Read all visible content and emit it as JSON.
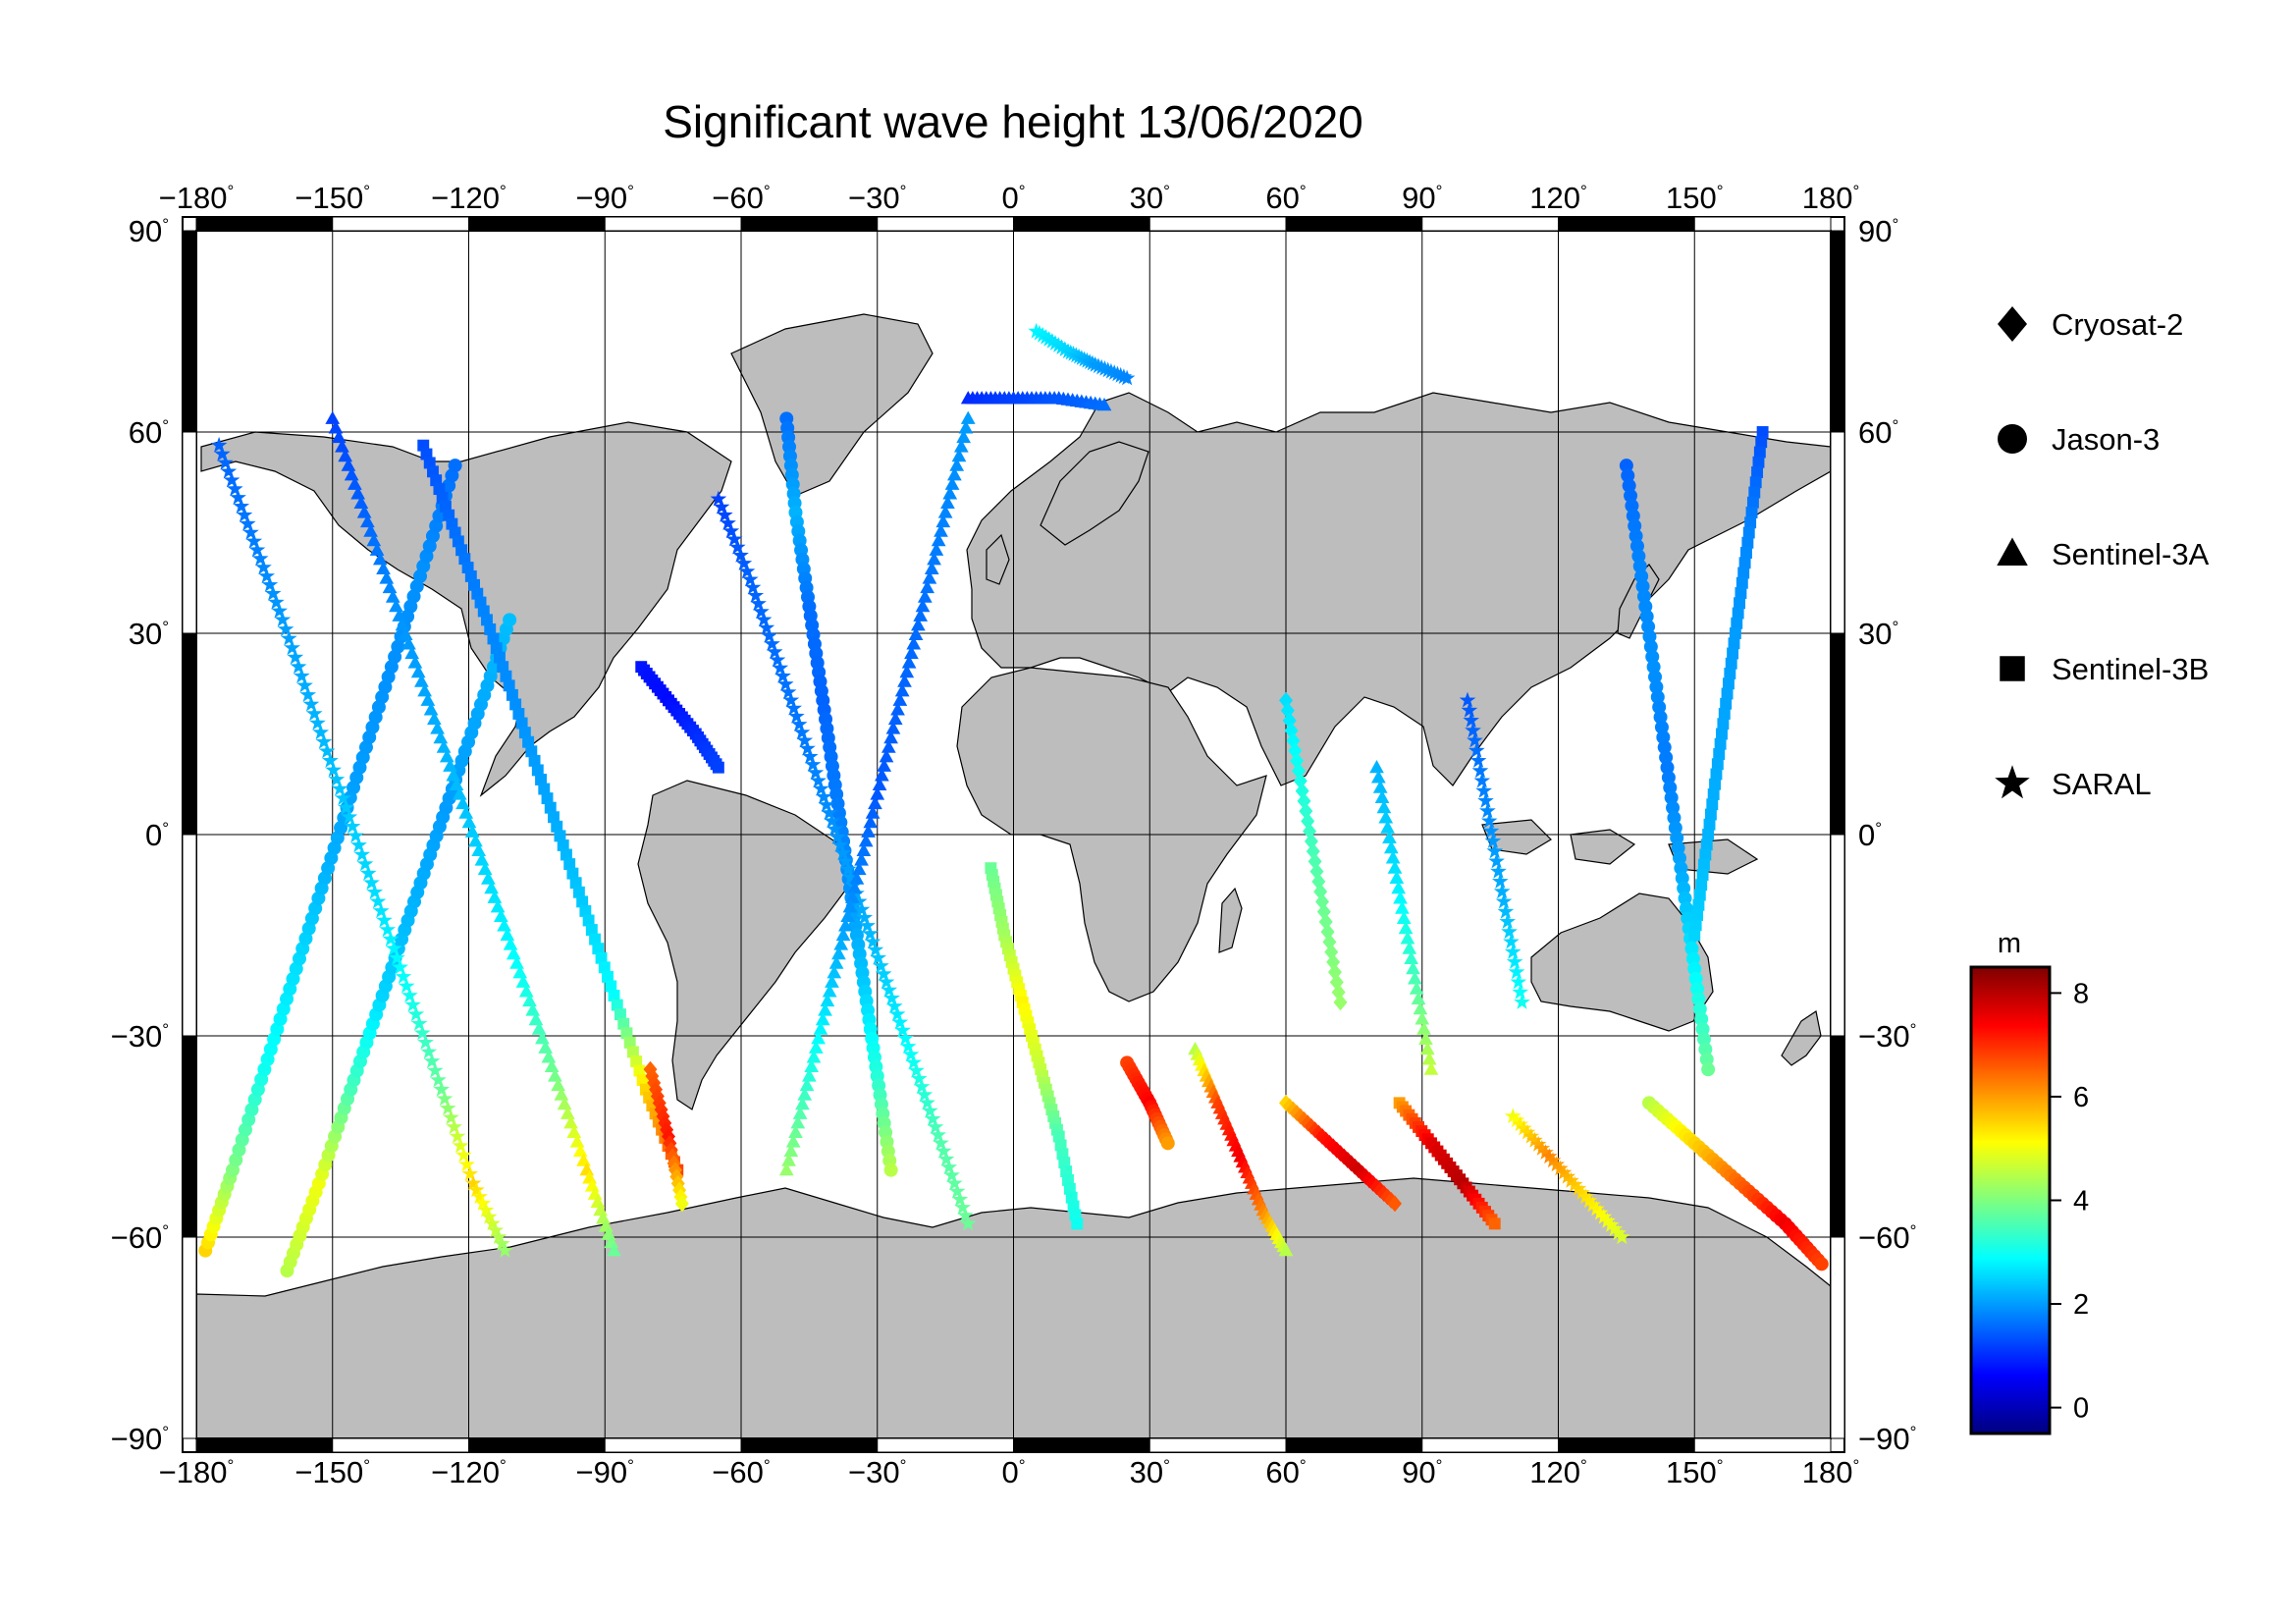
{
  "chart_data": {
    "type": "scatter",
    "title": "Significant wave height 13/06/2020",
    "projection": "equirectangular",
    "xlim": [
      -180,
      180
    ],
    "ylim": [
      -90,
      90
    ],
    "x_ticks": [
      "-180",
      "-150",
      "-120",
      "-90",
      "-60",
      "-30",
      "0",
      "30",
      "60",
      "90",
      "120",
      "150",
      "180"
    ],
    "y_ticks": [
      "90",
      "60",
      "30",
      "0",
      "-30",
      "-60",
      "-90"
    ],
    "x_tick_values": [
      -180,
      -150,
      -120,
      -90,
      -60,
      -30,
      0,
      30,
      60,
      90,
      120,
      150,
      180
    ],
    "y_tick_values": [
      90,
      60,
      30,
      0,
      -30,
      -60,
      -90
    ],
    "degree_symbol": "°",
    "grid": true,
    "land_color": "#bdbdbd",
    "ocean_color": "#ffffff",
    "legend": {
      "placement": "right",
      "entries": [
        {
          "name": "Cryosat-2",
          "marker": "diamond"
        },
        {
          "name": "Jason-3",
          "marker": "circle"
        },
        {
          "name": "Sentinel-3A",
          "marker": "triangle"
        },
        {
          "name": "Sentinel-3B",
          "marker": "square"
        },
        {
          "name": "SARAL",
          "marker": "star"
        }
      ]
    },
    "colorbar": {
      "label": "m",
      "ticks": [
        "8",
        "6",
        "4",
        "2",
        "0"
      ],
      "tick_values": [
        8,
        6,
        4,
        2,
        0
      ],
      "range": [
        -0.5,
        8.5
      ],
      "colormap": "jet",
      "placement": "right"
    },
    "tracks": [
      {
        "satellite": "Jason-3",
        "points": [
          [
            -178,
            -62,
            5.5
          ],
          [
            -172,
            -50,
            4
          ],
          [
            -165,
            -35,
            3
          ],
          [
            -158,
            -20,
            2.6
          ],
          [
            -151,
            -5,
            2.2
          ],
          [
            -144,
            10,
            2
          ],
          [
            -137,
            25,
            1.9
          ],
          [
            -130,
            40,
            1.9
          ],
          [
            -123,
            55,
            1.6
          ]
        ]
      },
      {
        "satellite": "Jason-3",
        "points": [
          [
            -160,
            -65,
            4.5
          ],
          [
            -153,
            -52,
            5
          ],
          [
            -146,
            -38,
            3.5
          ],
          [
            -139,
            -24,
            2.5
          ],
          [
            -132,
            -10,
            2.2
          ],
          [
            -125,
            4,
            2
          ],
          [
            -118,
            18,
            2.1
          ],
          [
            -111,
            32,
            2.3
          ]
        ]
      },
      {
        "satellite": "SARAL",
        "points": [
          [
            -175,
            58,
            1.5
          ],
          [
            -168,
            45,
            1.7
          ],
          [
            -161,
            32,
            2
          ],
          [
            -154,
            18,
            2.2
          ],
          [
            -147,
            4,
            2.4
          ],
          [
            -140,
            -10,
            2.6
          ],
          [
            -133,
            -24,
            3
          ],
          [
            -126,
            -38,
            3.8
          ],
          [
            -119,
            -52,
            5.5
          ],
          [
            -112,
            -62,
            4.2
          ]
        ]
      },
      {
        "satellite": "Sentinel-3A",
        "points": [
          [
            -150,
            62,
            1.2
          ],
          [
            -143,
            48,
            1.5
          ],
          [
            -136,
            34,
            1.9
          ],
          [
            -129,
            20,
            2.1
          ],
          [
            -122,
            6,
            2.3
          ],
          [
            -115,
            -8,
            2.6
          ],
          [
            -108,
            -22,
            3
          ],
          [
            -101,
            -36,
            3.9
          ],
          [
            -94,
            -50,
            5.4
          ],
          [
            -88,
            -62,
            3.8
          ]
        ]
      },
      {
        "satellite": "Sentinel-3B",
        "points": [
          [
            -130,
            58,
            1.3
          ],
          [
            -123,
            45,
            1.6
          ],
          [
            -116,
            32,
            1.8
          ],
          [
            -109,
            18,
            1.9
          ],
          [
            -102,
            4,
            2.1
          ],
          [
            -95,
            -10,
            2.4
          ],
          [
            -88,
            -24,
            2.9
          ],
          [
            -81,
            -38,
            5.5
          ],
          [
            -74,
            -50,
            6.8
          ]
        ]
      },
      {
        "satellite": "Cryosat-2",
        "points": [
          [
            -80,
            -35,
            6.5
          ],
          [
            -76,
            -45,
            7.2
          ],
          [
            -73,
            -55,
            5
          ]
        ]
      },
      {
        "satellite": "Jason-3",
        "points": [
          [
            -50,
            62,
            1.6
          ],
          [
            -48,
            48,
            2.2
          ],
          [
            -45,
            34,
            1.6
          ],
          [
            -42,
            20,
            1.5
          ],
          [
            -39,
            6,
            1.7
          ],
          [
            -36,
            -8,
            1.9
          ],
          [
            -33,
            -22,
            2.4
          ],
          [
            -30,
            -36,
            3.2
          ],
          [
            -27,
            -50,
            4.5
          ]
        ]
      },
      {
        "satellite": "SARAL",
        "points": [
          [
            -65,
            50,
            1.2
          ],
          [
            -58,
            38,
            1.5
          ],
          [
            -52,
            26,
            1.6
          ],
          [
            -46,
            14,
            1.7
          ],
          [
            -40,
            2,
            1.9
          ],
          [
            -34,
            -10,
            2.1
          ],
          [
            -28,
            -22,
            2.5
          ],
          [
            -22,
            -34,
            3
          ],
          [
            -16,
            -46,
            3.6
          ],
          [
            -10,
            -58,
            3.8
          ]
        ]
      },
      {
        "satellite": "Sentinel-3A",
        "points": [
          [
            -10,
            62,
            2
          ],
          [
            -15,
            48,
            1.8
          ],
          [
            -20,
            34,
            1.6
          ],
          [
            -25,
            20,
            1.5
          ],
          [
            -30,
            6,
            1.4
          ],
          [
            -35,
            -8,
            1.8
          ],
          [
            -40,
            -22,
            2.4
          ],
          [
            -45,
            -36,
            3.2
          ],
          [
            -50,
            -50,
            4.2
          ]
        ]
      },
      {
        "satellite": "Sentinel-3B",
        "points": [
          [
            -5,
            -5,
            3.8
          ],
          [
            -2,
            -15,
            4.3
          ],
          [
            2,
            -25,
            5.2
          ],
          [
            6,
            -35,
            4.6
          ],
          [
            10,
            -45,
            3.5
          ],
          [
            14,
            -58,
            3
          ]
        ]
      },
      {
        "satellite": "Jason-3",
        "points": [
          [
            25,
            -34,
            6.8
          ],
          [
            30,
            -40,
            7.4
          ],
          [
            34,
            -46,
            6
          ]
        ]
      },
      {
        "satellite": "Sentinel-3A",
        "points": [
          [
            40,
            -32,
            4.5
          ],
          [
            45,
            -40,
            6.8
          ],
          [
            50,
            -48,
            7.5
          ],
          [
            55,
            -56,
            6.2
          ],
          [
            60,
            -62,
            4.5
          ]
        ]
      },
      {
        "satellite": "Cryosat-2",
        "points": [
          [
            60,
            -40,
            5.5
          ],
          [
            68,
            -45,
            7.2
          ],
          [
            76,
            -50,
            7.8
          ],
          [
            84,
            -55,
            6.6
          ]
        ]
      },
      {
        "satellite": "Sentinel-3B",
        "points": [
          [
            85,
            -40,
            6
          ],
          [
            92,
            -46,
            7.6
          ],
          [
            99,
            -52,
            8
          ],
          [
            106,
            -58,
            6.5
          ]
        ]
      },
      {
        "satellite": "SARAL",
        "points": [
          [
            110,
            -42,
            5
          ],
          [
            118,
            -48,
            6.2
          ],
          [
            126,
            -54,
            5.4
          ],
          [
            134,
            -60,
            4.8
          ]
        ]
      },
      {
        "satellite": "Jason-3",
        "points": [
          [
            140,
            -40,
            4.5
          ],
          [
            150,
            -46,
            5.5
          ],
          [
            160,
            -52,
            6.5
          ],
          [
            170,
            -58,
            7.5
          ],
          [
            178,
            -64,
            6.8
          ]
        ]
      },
      {
        "satellite": "Sentinel-3A",
        "points": [
          [
            80,
            10,
            2.2
          ],
          [
            84,
            -5,
            2.6
          ],
          [
            88,
            -20,
            3.4
          ],
          [
            92,
            -35,
            4.6
          ]
        ]
      },
      {
        "satellite": "Cryosat-2",
        "points": [
          [
            60,
            20,
            2.6
          ],
          [
            64,
            5,
            3.2
          ],
          [
            68,
            -10,
            3.8
          ],
          [
            72,
            -25,
            4.2
          ]
        ]
      },
      {
        "satellite": "SARAL",
        "points": [
          [
            100,
            20,
            1.4
          ],
          [
            104,
            5,
            1.8
          ],
          [
            108,
            -10,
            2.2
          ],
          [
            112,
            -25,
            3
          ]
        ]
      },
      {
        "satellite": "Jason-3",
        "points": [
          [
            135,
            55,
            1.5
          ],
          [
            138,
            40,
            1.8
          ],
          [
            141,
            25,
            1.9
          ],
          [
            144,
            10,
            1.7
          ],
          [
            147,
            -5,
            2.1
          ],
          [
            150,
            -20,
            2.8
          ],
          [
            153,
            -35,
            3.8
          ]
        ]
      },
      {
        "satellite": "Sentinel-3B",
        "points": [
          [
            165,
            60,
            1.3
          ],
          [
            162,
            45,
            1.8
          ],
          [
            159,
            30,
            2
          ],
          [
            156,
            15,
            2.1
          ],
          [
            153,
            0,
            2.2
          ],
          [
            150,
            -15,
            2.5
          ]
        ]
      },
      {
        "satellite": "SARAL",
        "points": [
          [
            5,
            75,
            2.8
          ],
          [
            12,
            72,
            2.5
          ],
          [
            18,
            70,
            2
          ],
          [
            25,
            68,
            1.8
          ]
        ]
      },
      {
        "satellite": "Sentinel-3A",
        "points": [
          [
            -10,
            65,
            1
          ],
          [
            0,
            65,
            1.2
          ],
          [
            10,
            65,
            1.4
          ],
          [
            20,
            64,
            1.6
          ]
        ]
      },
      {
        "satellite": "Sentinel-3B",
        "points": [
          [
            -82,
            25,
            0.8
          ],
          [
            -76,
            20,
            0.7
          ],
          [
            -70,
            15,
            1
          ],
          [
            -65,
            10,
            1.2
          ]
        ]
      }
    ]
  }
}
